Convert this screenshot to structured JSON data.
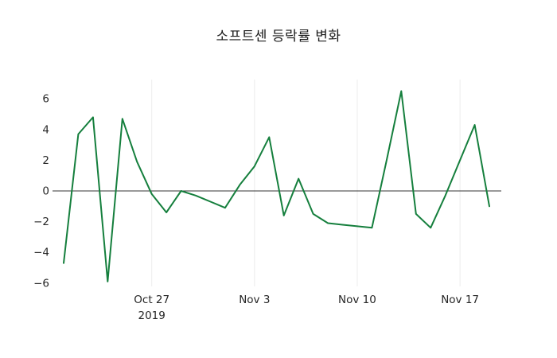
{
  "chart_data": {
    "type": "line",
    "title": "소프트센 등락률 변화",
    "grid": "vertical-only",
    "legend": false,
    "zero_line": true,
    "ylim": [
      -6.5,
      7.2
    ],
    "colors": {
      "line": "#157f3d",
      "zero_line": "#333333",
      "grid": "#ececec",
      "text": "#262626"
    },
    "y_ticks": [
      {
        "label": "6",
        "value": 6
      },
      {
        "label": "4",
        "value": 4
      },
      {
        "label": "2",
        "value": 2
      },
      {
        "label": "0",
        "value": 0
      },
      {
        "label": "−2",
        "value": -2
      },
      {
        "label": "−4",
        "value": -4
      },
      {
        "label": "−6",
        "value": -6
      }
    ],
    "x_ticks": [
      {
        "label": "Oct 27",
        "sublabel": "2019",
        "date": "2019-10-27"
      },
      {
        "label": "Nov 3",
        "date": "2019-11-03"
      },
      {
        "label": "Nov 10",
        "date": "2019-11-10"
      },
      {
        "label": "Nov 17",
        "date": "2019-11-17"
      }
    ],
    "series": [
      {
        "name": "소프트센 등락률",
        "color": "#157f3d",
        "points": [
          [
            "2019-10-21",
            -4.7
          ],
          [
            "2019-10-22",
            3.7
          ],
          [
            "2019-10-23",
            4.8
          ],
          [
            "2019-10-24",
            -5.9
          ],
          [
            "2019-10-25",
            4.7
          ],
          [
            "2019-10-26",
            1.9
          ],
          [
            "2019-10-27",
            -0.2
          ],
          [
            "2019-10-28",
            -1.4
          ],
          [
            "2019-10-29",
            0.0
          ],
          [
            "2019-10-30",
            -0.3
          ],
          [
            "2019-10-31",
            -0.7
          ],
          [
            "2019-11-01",
            -1.1
          ],
          [
            "2019-11-02",
            0.4
          ],
          [
            "2019-11-03",
            1.6
          ],
          [
            "2019-11-04",
            3.5
          ],
          [
            "2019-11-05",
            -1.6
          ],
          [
            "2019-11-06",
            0.8
          ],
          [
            "2019-11-07",
            -1.5
          ],
          [
            "2019-11-08",
            -2.1
          ],
          [
            "2019-11-09",
            -2.2
          ],
          [
            "2019-11-10",
            -2.3
          ],
          [
            "2019-11-11",
            -2.4
          ],
          [
            "2019-11-12",
            2.0
          ],
          [
            "2019-11-13",
            6.5
          ],
          [
            "2019-11-14",
            -1.5
          ],
          [
            "2019-11-15",
            -2.4
          ],
          [
            "2019-11-16",
            -0.3
          ],
          [
            "2019-11-17",
            2.0
          ],
          [
            "2019-11-18",
            4.3
          ],
          [
            "2019-11-19",
            -1.0
          ]
        ]
      }
    ]
  }
}
